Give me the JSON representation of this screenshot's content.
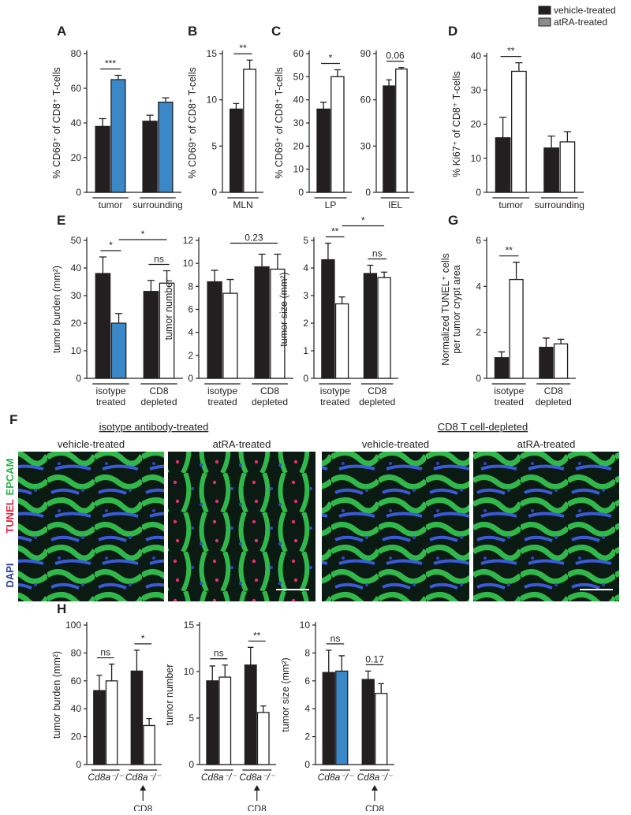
{
  "panel_labels": [
    "A",
    "B",
    "C",
    "D",
    "E",
    "G",
    "F",
    "H"
  ],
  "legend": {
    "items": [
      {
        "name": "vehicle-treated",
        "color": "#231f20"
      },
      {
        "name": "atRA-treated",
        "color": "#8c8c8c"
      }
    ]
  },
  "panel_f": {
    "groups": [
      "isotype antibody-treated",
      "CD8 T cell-depleted"
    ],
    "image_titles": [
      "vehicle-treated",
      "atRA-treated",
      "vehicle-treated",
      "atRA-treated"
    ],
    "stains": [
      {
        "text": "EPCAM",
        "color": "#2db34a"
      },
      {
        "text": "TUNEL",
        "color": "#e0203c"
      },
      {
        "text": "DAPI",
        "color": "#2b3a9c"
      }
    ]
  },
  "chart_data": [
    {
      "type": "bar",
      "ylabel": "% CD69⁺ of CD8⁺ T-cells",
      "categories": [
        "tumor",
        "surrounding"
      ],
      "series": [
        {
          "colors": [
            "#231f20",
            "#231f20"
          ],
          "values": [
            38,
            41
          ],
          "errors": [
            4.5,
            3.5
          ]
        },
        {
          "colors": [
            "#3a88c8",
            "#3a88c8"
          ],
          "values": [
            65,
            52
          ],
          "errors": [
            2.5,
            2.5
          ]
        }
      ],
      "ylim": [
        0,
        80
      ],
      "yticks": [
        0,
        20,
        40,
        60,
        80
      ],
      "annotations": [
        "***"
      ]
    },
    {
      "type": "bar",
      "ylabel": "% CD69⁺ of CD8⁺ T-cells",
      "categories": [
        "MLN"
      ],
      "series": [
        {
          "colors": [
            "#231f20"
          ],
          "values": [
            9
          ],
          "errors": [
            0.6
          ]
        },
        {
          "colors": [
            "#ffffff"
          ],
          "values": [
            13.3
          ],
          "errors": [
            1
          ]
        }
      ],
      "ylim": [
        0,
        15
      ],
      "yticks": [
        0,
        5,
        10,
        15
      ],
      "annotations": [
        "**"
      ]
    },
    {
      "type": "bar",
      "ylabel": "% CD69⁺ of CD8⁺ T-cells",
      "categories": [
        "LP"
      ],
      "series": [
        {
          "colors": [
            "#231f20"
          ],
          "values": [
            36
          ],
          "errors": [
            3
          ]
        },
        {
          "colors": [
            "#ffffff"
          ],
          "values": [
            50
          ],
          "errors": [
            3
          ]
        }
      ],
      "ylim": [
        0,
        60
      ],
      "yticks": [
        0,
        10,
        20,
        30,
        40,
        50,
        60
      ],
      "annotations": [
        "*"
      ]
    },
    {
      "type": "bar",
      "categories": [
        "IEL"
      ],
      "series": [
        {
          "colors": [
            "#231f20"
          ],
          "values": [
            69
          ],
          "errors": [
            4
          ]
        },
        {
          "colors": [
            "#ffffff"
          ],
          "values": [
            80
          ],
          "errors": [
            1
          ]
        }
      ],
      "ylim": [
        0,
        90
      ],
      "yticks": [
        0,
        30,
        60,
        90
      ],
      "annotations": [
        "0.06"
      ]
    },
    {
      "type": "bar",
      "ylabel": "% Ki67⁺ of CD8⁺ T-cells",
      "categories": [
        "tumor",
        "surrounding"
      ],
      "series": [
        {
          "colors": [
            "#231f20",
            "#231f20"
          ],
          "values": [
            16,
            13
          ],
          "errors": [
            6,
            3.5
          ]
        },
        {
          "colors": [
            "#ffffff",
            "#ffffff"
          ],
          "values": [
            35.5,
            14.8
          ],
          "errors": [
            2.5,
            3
          ]
        }
      ],
      "ylim": [
        0,
        40
      ],
      "yticks": [
        0,
        10,
        20,
        30,
        40
      ],
      "annotations": [
        "**"
      ]
    },
    {
      "type": "bar",
      "ylabel": "tumor burden (mm²)",
      "categories": [
        "isotype\ntreated",
        "CD8\ndepleted"
      ],
      "series": [
        {
          "colors": [
            "#231f20",
            "#231f20"
          ],
          "values": [
            38,
            31.5
          ],
          "errors": [
            6,
            4
          ]
        },
        {
          "colors": [
            "#3a88c8",
            "#ffffff"
          ],
          "values": [
            20,
            34.5
          ],
          "errors": [
            3.5,
            4.5
          ]
        }
      ],
      "ylim": [
        0,
        50
      ],
      "yticks": [
        0,
        10,
        20,
        30,
        40,
        50
      ],
      "annotations": [
        "*",
        "ns",
        "*"
      ]
    },
    {
      "type": "bar",
      "ylabel": "tumor number",
      "categories": [
        "isotype\ntreated",
        "CD8\ndepleted"
      ],
      "series": [
        {
          "colors": [
            "#231f20",
            "#231f20"
          ],
          "values": [
            8.4,
            9.7
          ],
          "errors": [
            1,
            1.1
          ]
        },
        {
          "colors": [
            "#ffffff",
            "#ffffff"
          ],
          "values": [
            7.4,
            9.5
          ],
          "errors": [
            1.2,
            1.3
          ]
        }
      ],
      "ylim": [
        0,
        12
      ],
      "yticks": [
        0,
        2,
        4,
        6,
        8,
        10,
        12
      ],
      "annotations": [
        "0.23"
      ]
    },
    {
      "type": "bar",
      "ylabel": "tumor size (mm²)",
      "categories": [
        "isotype\ntreated",
        "CD8\ndepleted"
      ],
      "series": [
        {
          "colors": [
            "#231f20",
            "#231f20"
          ],
          "values": [
            4.3,
            3.8
          ],
          "errors": [
            0.6,
            0.3
          ]
        },
        {
          "colors": [
            "#ffffff",
            "#ffffff"
          ],
          "values": [
            2.7,
            3.65
          ],
          "errors": [
            0.25,
            0.2
          ]
        }
      ],
      "ylim": [
        0,
        5
      ],
      "yticks": [
        0,
        1,
        2,
        3,
        4,
        5
      ],
      "annotations": [
        "**",
        "ns",
        "*"
      ]
    },
    {
      "type": "bar",
      "ylabel": "Normalized TUNEL⁺ cells\nper tumor crypt area",
      "categories": [
        "isotype\ntreated",
        "CD8\ndepleted"
      ],
      "series": [
        {
          "colors": [
            "#231f20",
            "#231f20"
          ],
          "values": [
            0.9,
            1.35
          ],
          "errors": [
            0.25,
            0.4
          ]
        },
        {
          "colors": [
            "#ffffff",
            "#ffffff"
          ],
          "values": [
            4.3,
            1.5
          ],
          "errors": [
            0.75,
            0.2
          ]
        }
      ],
      "ylim": [
        0,
        6
      ],
      "yticks": [
        0,
        2,
        4,
        6
      ],
      "annotations": [
        "**"
      ]
    },
    {
      "type": "bar",
      "ylabel": "tumor burden (mm²)",
      "categories": [
        "Cd8a⁻/⁻",
        "Cd8a⁻/⁻"
      ],
      "category_style": "italic",
      "transfer_label": "CD8",
      "series": [
        {
          "colors": [
            "#231f20",
            "#231f20"
          ],
          "values": [
            53,
            67
          ],
          "errors": [
            11,
            15
          ]
        },
        {
          "colors": [
            "#ffffff",
            "#ffffff"
          ],
          "values": [
            60,
            28
          ],
          "errors": [
            12,
            5
          ]
        }
      ],
      "ylim": [
        0,
        100
      ],
      "yticks": [
        0,
        20,
        40,
        60,
        80,
        100
      ],
      "annotations": [
        "ns",
        "*"
      ]
    },
    {
      "type": "bar",
      "ylabel": "tumor number",
      "categories": [
        "Cd8a⁻/⁻",
        "Cd8a⁻/⁻"
      ],
      "category_style": "italic",
      "transfer_label": "CD8",
      "series": [
        {
          "colors": [
            "#231f20",
            "#231f20"
          ],
          "values": [
            9,
            10.7
          ],
          "errors": [
            1.6,
            1.9
          ]
        },
        {
          "colors": [
            "#ffffff",
            "#ffffff"
          ],
          "values": [
            9.4,
            5.6
          ],
          "errors": [
            1.3,
            0.7
          ]
        }
      ],
      "ylim": [
        0,
        15
      ],
      "yticks": [
        0,
        5,
        10,
        15
      ],
      "annotations": [
        "ns",
        "**"
      ]
    },
    {
      "type": "bar",
      "ylabel": "tumor size (mm²)",
      "categories": [
        "Cd8a⁻/⁻",
        "Cd8a⁻/⁻"
      ],
      "category_style": "italic",
      "transfer_label": "CD8",
      "series": [
        {
          "colors": [
            "#231f20",
            "#231f20"
          ],
          "values": [
            6.6,
            6.1
          ],
          "errors": [
            1.6,
            0.6
          ]
        },
        {
          "colors": [
            "#3a88c8",
            "#ffffff"
          ],
          "values": [
            6.7,
            5.1
          ],
          "errors": [
            1.1,
            0.7
          ]
        }
      ],
      "ylim": [
        0,
        10
      ],
      "yticks": [
        0,
        2,
        4,
        6,
        8,
        10
      ],
      "annotations": [
        "ns",
        "0.17"
      ]
    }
  ]
}
